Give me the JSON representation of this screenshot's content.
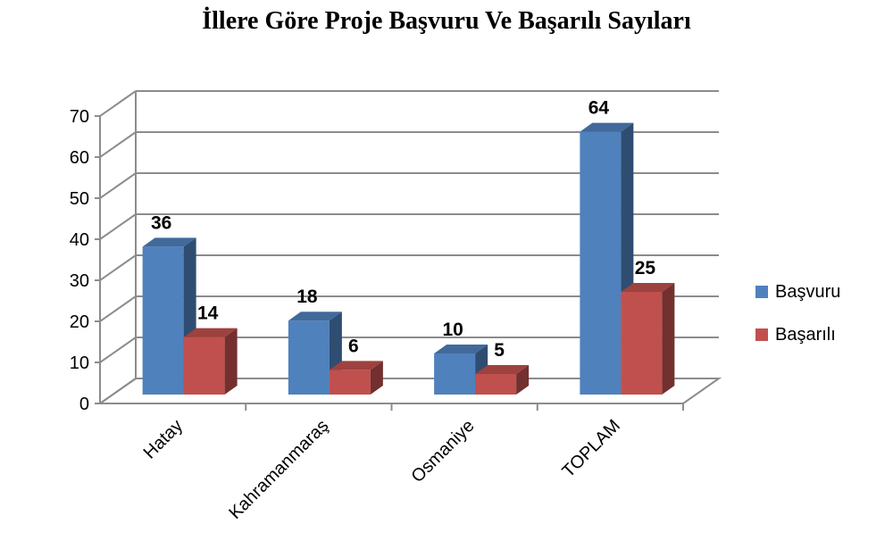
{
  "chart_data": {
    "type": "bar",
    "title": "İllere Göre Proje Başvuru Ve Başarılı Sayıları",
    "categories": [
      "Hatay",
      "Kahramanmaraş",
      "Osmaniye",
      "TOPLAM"
    ],
    "series": [
      {
        "name": "Başvuru",
        "values": [
          36,
          18,
          10,
          64
        ],
        "color": "#4F81BD"
      },
      {
        "name": "Başarılı",
        "values": [
          14,
          6,
          5,
          25
        ],
        "color": "#C0504D"
      }
    ],
    "ylim": [
      0,
      70
    ],
    "yticks": [
      "0",
      "10",
      "20",
      "30",
      "40",
      "50",
      "60",
      "70"
    ],
    "grid": true,
    "legend_position": "right",
    "three_d": true
  }
}
